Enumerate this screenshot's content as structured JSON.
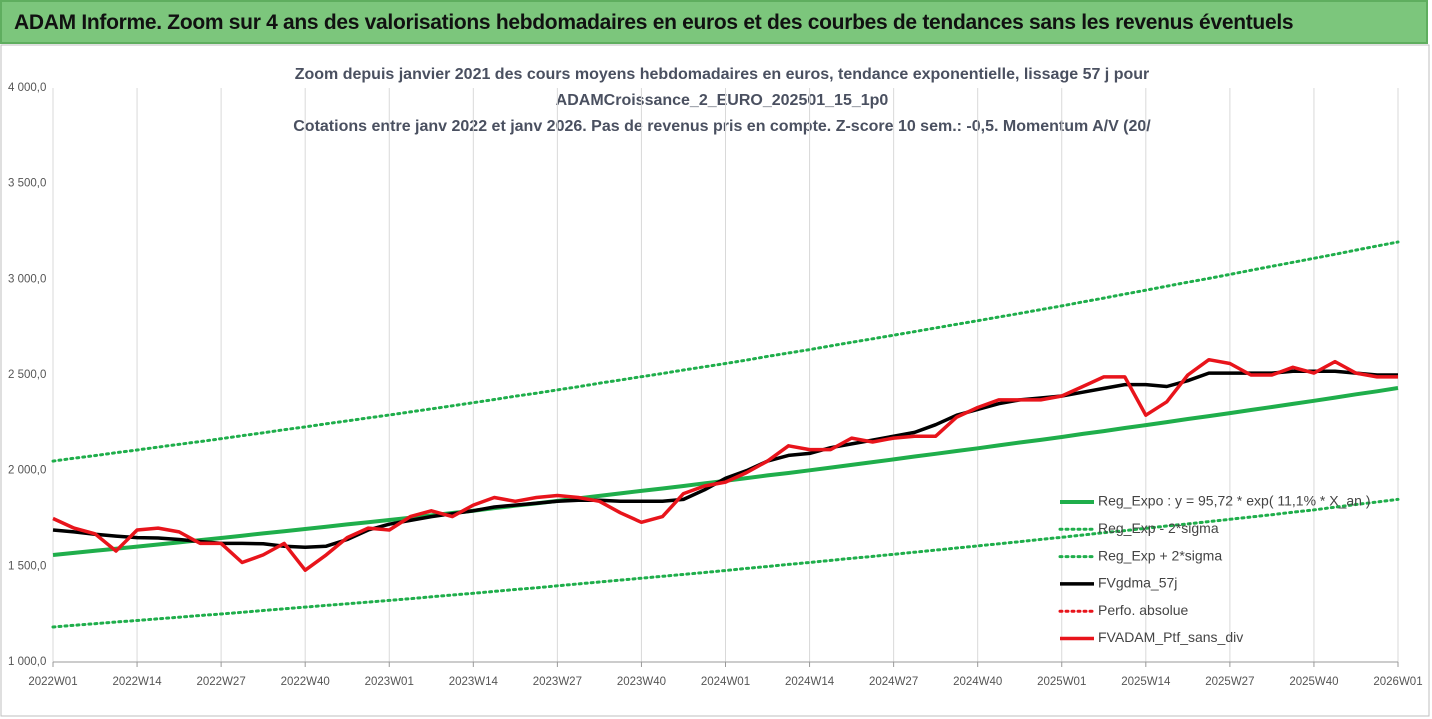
{
  "header": {
    "title": "ADAM Informe. Zoom sur 4 ans des valorisations hebdomadaires en euros et des courbes de tendances sans les revenus éventuels"
  },
  "chart_data": {
    "type": "line",
    "title": [
      "Zoom depuis janvier 2021 des cours moyens hebdomadaires  en euros, tendance exponentielle, lissage 57 j pour",
      "ADAMCroissance_2_EURO_202501_15_1p0",
      "Cotations entre janv 2022 et janv 2026. Pas de revenus pris en compte. Z-score 10 sem.: -0,5. Momentum A/V (20/"
    ],
    "categories": [
      "2022W01",
      null,
      null,
      null,
      "2022W14",
      null,
      null,
      null,
      "2022W27",
      null,
      null,
      null,
      "2022W40",
      null,
      null,
      null,
      "2023W01",
      null,
      null,
      null,
      "2023W14",
      null,
      null,
      null,
      "2023W27",
      null,
      null,
      null,
      "2023W40",
      null,
      null,
      null,
      "2024W01",
      null,
      null,
      null,
      "2024W14",
      null,
      null,
      null,
      "2024W27",
      null,
      null,
      null,
      "2024W40",
      null,
      null,
      null,
      "2025W01",
      null,
      null,
      null,
      "2025W14",
      null,
      null,
      null,
      "2025W27",
      null,
      null,
      null,
      "2025W40",
      null,
      null,
      null,
      "2026W01"
    ],
    "ylim": [
      1000,
      4000
    ],
    "yticks": [
      {
        "value": 1000,
        "label": "1 000,0"
      },
      {
        "value": 1500,
        "label": "1 500,0"
      },
      {
        "value": 2000,
        "label": "2 000,0"
      },
      {
        "value": 2500,
        "label": "2 500,0"
      },
      {
        "value": 3000,
        "label": "3 000,0"
      },
      {
        "value": 3500,
        "label": "3 500,0"
      },
      {
        "value": 4000,
        "label": "4 000,0"
      }
    ],
    "grid": "x",
    "legend": "right",
    "series": [
      {
        "name": "Reg_Expo : y = 95,72 * exp( 11,1% *  X_an )",
        "color": "#1fae4b",
        "dash": "solid",
        "width": 4,
        "values": [
          1559,
          1570,
          1581,
          1592,
          1603,
          1614,
          1625,
          1637,
          1648,
          1660,
          1672,
          1683,
          1695,
          1707,
          1719,
          1730,
          1742,
          1754,
          1766,
          1779,
          1791,
          1804,
          1817,
          1829,
          1842,
          1855,
          1868,
          1881,
          1894,
          1907,
          1920,
          1934,
          1947,
          1961,
          1975,
          1988,
          2002,
          2016,
          2030,
          2045,
          2059,
          2074,
          2088,
          2103,
          2117,
          2132,
          2147,
          2161,
          2176,
          2192,
          2207,
          2223,
          2238,
          2254,
          2270,
          2285,
          2301,
          2317,
          2333,
          2349,
          2365,
          2382,
          2399,
          2415,
          2432
        ]
      },
      {
        "name": "Reg_Exp - 2*sigma",
        "color": "#1fae4b",
        "dash": "dotted",
        "width": 3,
        "values": [
          1183,
          1192,
          1200,
          1209,
          1217,
          1226,
          1234,
          1243,
          1251,
          1260,
          1269,
          1278,
          1287,
          1296,
          1304,
          1313,
          1322,
          1331,
          1341,
          1350,
          1359,
          1369,
          1379,
          1388,
          1398,
          1408,
          1418,
          1428,
          1438,
          1448,
          1458,
          1468,
          1478,
          1489,
          1499,
          1510,
          1520,
          1531,
          1542,
          1552,
          1563,
          1574,
          1585,
          1596,
          1607,
          1618,
          1629,
          1641,
          1652,
          1664,
          1676,
          1687,
          1699,
          1711,
          1722,
          1734,
          1746,
          1758,
          1770,
          1783,
          1795,
          1809,
          1823,
          1836,
          1850
        ]
      },
      {
        "name": "Reg_Exp + 2*sigma",
        "color": "#1fae4b",
        "dash": "dotted",
        "width": 3,
        "values": [
          2050,
          2065,
          2079,
          2094,
          2108,
          2123,
          2138,
          2152,
          2167,
          2183,
          2198,
          2214,
          2229,
          2245,
          2260,
          2276,
          2291,
          2307,
          2323,
          2339,
          2355,
          2372,
          2389,
          2405,
          2422,
          2439,
          2457,
          2474,
          2491,
          2508,
          2526,
          2543,
          2560,
          2578,
          2597,
          2615,
          2633,
          2652,
          2671,
          2689,
          2708,
          2727,
          2746,
          2765,
          2784,
          2803,
          2822,
          2842,
          2861,
          2882,
          2902,
          2923,
          2943,
          2964,
          2985,
          3005,
          3026,
          3047,
          3068,
          3089,
          3110,
          3131,
          3153,
          3174,
          3195
        ]
      },
      {
        "name": "FVgdma_57j",
        "color": "#000000",
        "dash": "solid",
        "width": 3.5,
        "values": [
          1690,
          1680,
          1668,
          1658,
          1650,
          1648,
          1640,
          1630,
          1620,
          1620,
          1618,
          1605,
          1600,
          1605,
          1640,
          1690,
          1720,
          1740,
          1760,
          1775,
          1790,
          1810,
          1820,
          1830,
          1840,
          1845,
          1845,
          1840,
          1840,
          1840,
          1850,
          1900,
          1960,
          2000,
          2050,
          2080,
          2090,
          2120,
          2140,
          2160,
          2180,
          2200,
          2240,
          2290,
          2320,
          2350,
          2370,
          2380,
          2390,
          2410,
          2430,
          2450,
          2450,
          2440,
          2470,
          2510,
          2510,
          2510,
          2510,
          2520,
          2520,
          2520,
          2510,
          2500,
          2500
        ]
      },
      {
        "name": "Perfo. absolue",
        "color": "#e8141b",
        "dash": "dotted",
        "width": 3,
        "values": [
          null,
          null,
          null,
          null,
          null,
          null,
          null,
          null,
          null,
          null,
          null,
          null,
          null,
          null,
          null,
          null,
          null,
          null,
          null,
          null,
          null,
          null,
          null,
          null,
          null,
          null,
          null,
          null,
          null,
          null,
          null,
          null,
          null,
          null,
          null,
          null,
          null,
          null,
          null,
          null,
          null,
          null,
          null,
          null,
          null,
          null,
          null,
          null,
          null,
          null,
          null,
          null,
          null,
          null,
          null,
          null,
          null,
          null,
          null,
          null,
          null,
          null,
          null,
          null,
          null
        ]
      },
      {
        "name": "FVADAM_Ptf_sans_div",
        "color": "#e8141b",
        "dash": "solid",
        "width": 3.5,
        "values": [
          1750,
          1700,
          1670,
          1580,
          1690,
          1700,
          1680,
          1620,
          1620,
          1520,
          1560,
          1620,
          1480,
          1560,
          1650,
          1700,
          1690,
          1760,
          1790,
          1760,
          1820,
          1860,
          1840,
          1860,
          1870,
          1860,
          1840,
          1780,
          1730,
          1760,
          1880,
          1920,
          1940,
          1990,
          2050,
          2130,
          2110,
          2110,
          2170,
          2150,
          2170,
          2180,
          2180,
          2280,
          2330,
          2370,
          2370,
          2370,
          2390,
          2440,
          2490,
          2490,
          2290,
          2360,
          2500,
          2580,
          2560,
          2500,
          2500,
          2540,
          2510,
          2570,
          2510,
          2490,
          2490
        ]
      }
    ]
  }
}
